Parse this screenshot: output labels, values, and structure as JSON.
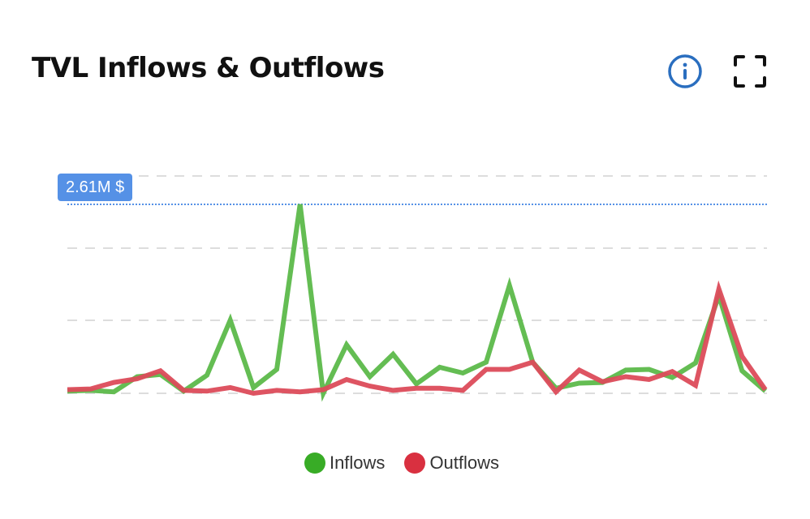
{
  "header": {
    "title": "TVL Inflows & Outflows",
    "info_icon": "info-circle-icon",
    "expand_icon": "fullscreen-expand-icon"
  },
  "tooltip": {
    "value_label": "2.61M $"
  },
  "colors": {
    "inflows": "#5cb94a",
    "outflows": "#dc4b5a",
    "inflows_legend": "#38ac26",
    "outflows_legend": "#d93040",
    "crosshair": "#5591e6",
    "info_icon": "#2a6ebf"
  },
  "legend": [
    {
      "label": "Inflows",
      "color": "#38ac26"
    },
    {
      "label": "Outflows",
      "color": "#d93040"
    }
  ],
  "chart_data": {
    "type": "line",
    "title": "TVL Inflows & Outflows",
    "xlabel": "",
    "ylabel": "",
    "ylim": [
      0,
      3000000
    ],
    "grid": true,
    "gridlines": [
      0,
      1000000,
      2000000,
      3000000
    ],
    "legend_position": "bottom",
    "annotation": {
      "label": "2.61M $",
      "value": 2610000
    },
    "x": [
      1,
      2,
      3,
      4,
      5,
      6,
      7,
      8,
      9,
      10,
      11,
      12,
      13,
      14,
      15,
      16,
      17,
      18,
      19,
      20,
      21,
      22,
      23,
      24,
      25,
      26,
      27,
      28,
      29,
      30,
      31
    ],
    "series": [
      {
        "name": "Inflows",
        "values": [
          30000,
          40000,
          20000,
          230000,
          260000,
          30000,
          250000,
          1010000,
          80000,
          330000,
          2610000,
          0,
          670000,
          230000,
          540000,
          130000,
          360000,
          280000,
          430000,
          1490000,
          430000,
          70000,
          140000,
          150000,
          320000,
          330000,
          220000,
          420000,
          1350000,
          310000,
          30000
        ]
      },
      {
        "name": "Outflows",
        "values": [
          50000,
          60000,
          150000,
          200000,
          310000,
          40000,
          30000,
          80000,
          0,
          40000,
          20000,
          50000,
          190000,
          100000,
          40000,
          70000,
          70000,
          40000,
          330000,
          330000,
          430000,
          20000,
          320000,
          160000,
          230000,
          190000,
          300000,
          110000,
          1440000,
          510000,
          50000
        ]
      }
    ]
  }
}
